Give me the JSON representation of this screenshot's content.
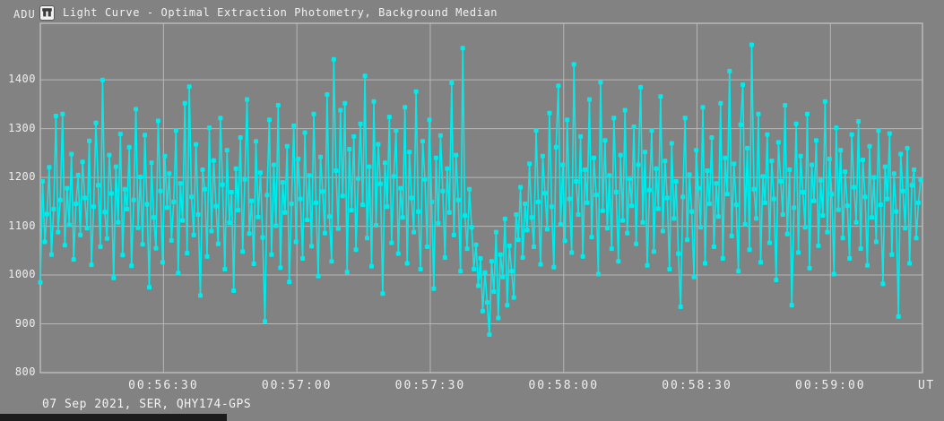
{
  "window": {
    "title": "Light Curve - Optimal Extraction Photometry, Background Median",
    "icon": "app-icon"
  },
  "axes": {
    "y_unit": "ADU",
    "x_unit": "UT"
  },
  "footer": {
    "text": "07 Sep 2021, SER, QHY174-GPS"
  },
  "colors": {
    "background": "#828282",
    "grid": "#b6b6b6",
    "frame": "#bdbdbd",
    "series": "#00ecec",
    "text": "#f0f0f0",
    "background_fragment": "#1c1c1c"
  },
  "chart_data": {
    "type": "line",
    "title": "Light Curve - Optimal Extraction Photometry, Background Median",
    "xlabel": "UT",
    "ylabel": "ADU",
    "legend": "none",
    "grid": true,
    "marker": "square",
    "ylim": [
      800,
      1516
    ],
    "yticks": [
      800,
      900,
      1000,
      1100,
      1200,
      1300,
      1400
    ],
    "x_start_time": "00:56:02",
    "x_end_time": "00:59:20",
    "duration_s": 198.4,
    "sample_interval_s": 0.5,
    "xticks": [
      {
        "label": "00:56:30",
        "t": 27.7
      },
      {
        "label": "00:57:00",
        "t": 57.7
      },
      {
        "label": "00:57:30",
        "t": 87.7
      },
      {
        "label": "00:58:00",
        "t": 117.7
      },
      {
        "label": "00:58:30",
        "t": 147.7
      },
      {
        "label": "00:59:00",
        "t": 177.7
      }
    ],
    "values": [
      985,
      1192,
      1068,
      1125,
      1221,
      1042,
      1135,
      1326,
      1088,
      1154,
      1330,
      1061,
      1178,
      1103,
      1248,
      1032,
      1146,
      1205,
      1082,
      1232,
      1158,
      1096,
      1275,
      1021,
      1140,
      1312,
      1184,
      1058,
      1400,
      1129,
      1075,
      1246,
      1167,
      994,
      1222,
      1108,
      1289,
      1041,
      1176,
      1135,
      1262,
      1019,
      1154,
      1340,
      1097,
      1201,
      1063,
      1287,
      1145,
      975,
      1230,
      1118,
      1055,
      1316,
      1172,
      1026,
      1244,
      1138,
      1208,
      1071,
      1150,
      1296,
      1004,
      1188,
      1112,
      1352,
      1045,
      1386,
      1160,
      1082,
      1268,
      1124,
      958,
      1216,
      1176,
      1038,
      1302,
      1090,
      1235,
      1141,
      1064,
      1322,
      1185,
      1012,
      1256,
      1107,
      1170,
      968,
      1218,
      1133,
      1282,
      1048,
      1196,
      1360,
      1085,
      1152,
      1023,
      1274,
      1119,
      1210,
      1077,
      905,
      1164,
      1318,
      1042,
      1226,
      1101,
      1348,
      1015,
      1190,
      1128,
      1264,
      986,
      1146,
      1306,
      1068,
      1238,
      1156,
      1034,
      1292,
      1113,
      1204,
      1059,
      1330,
      1148,
      998,
      1242,
      1171,
      1086,
      1370,
      1120,
      1028,
      1442,
      1214,
      1095,
      1338,
      1162,
      1352,
      1006,
      1258,
      1133,
      1284,
      1052,
      1198,
      1310,
      1144,
      1408,
      1076,
      1222,
      1018,
      1356,
      1102,
      1268,
      1187,
      962,
      1230,
      1140,
      1324,
      1066,
      1202,
      1296,
      1044,
      1178,
      1118,
      1344,
      1024,
      1252,
      1158,
      1088,
      1376,
      1130,
      1012,
      1274,
      1196,
      1058,
      1318,
      1150,
      972,
      1240,
      1106,
      1286,
      1172,
      1036,
      1218,
      1128,
      1394,
      1082,
      1246,
      1154,
      1008,
      1465,
      1122,
      1054,
      1176,
      1098,
      1012,
      1062,
      978,
      1034,
      926,
      1005,
      944,
      878,
      1028,
      966,
      1088,
      912,
      1042,
      996,
      1115,
      938,
      1060,
      1008,
      954,
      1124,
      1072,
      1180,
      1036,
      1146,
      1092,
      1228,
      1118,
      1058,
      1296,
      1150,
      1022,
      1244,
      1168,
      1094,
      1332,
      1140,
      1016,
      1262,
      1388,
      1104,
      1226,
      1070,
      1318,
      1156,
      1046,
      1432,
      1192,
      1124,
      1284,
      1038,
      1216,
      1148,
      1360,
      1078,
      1240,
      1164,
      1002,
      1395,
      1132,
      1276,
      1096,
      1204,
      1054,
      1322,
      1170,
      1028,
      1246,
      1112,
      1338,
      1086,
      1198,
      1142,
      1304,
      1064,
      1226,
      1385,
      1108,
      1252,
      1020,
      1174,
      1296,
      1048,
      1218,
      1136,
      1366,
      1090,
      1234,
      1158,
      1012,
      1270,
      1116,
      1192,
      1044,
      935,
      1160,
      1322,
      1072,
      1206,
      1130,
      996,
      1256,
      1178,
      1098,
      1344,
      1024,
      1214,
      1146,
      1282,
      1058,
      1188,
      1120,
      1352,
      1034,
      1240,
      1166,
      1418,
      1080,
      1228,
      1144,
      1008,
      1308,
      1390,
      1104,
      1260,
      1052,
      1472,
      1176,
      1116,
      1330,
      1026,
      1202,
      1148,
      1288,
      1066,
      1234,
      1156,
      990,
      1272,
      1192,
      1124,
      1348,
      1084,
      1216,
      938,
      1138,
      1310,
      1046,
      1244,
      1170,
      1098,
      1330,
      1014,
      1226,
      1152,
      1276,
      1060,
      1194,
      1122,
      1356,
      1088,
      1238,
      1166,
      1002,
      1302,
      1134,
      1256,
      1076,
      1212,
      1142,
      1034,
      1288,
      1180,
      1108,
      1315,
      1054,
      1236,
      1160,
      1020,
      1264,
      1118,
      1200,
      1068,
      1296,
      1144,
      982,
      1222,
      1156,
      1290,
      1042,
      1208,
      1130,
      915,
      1248,
      1172,
      1096,
      1260,
      1024,
      1184,
      1216,
      1076,
      1148,
      1195
    ]
  }
}
